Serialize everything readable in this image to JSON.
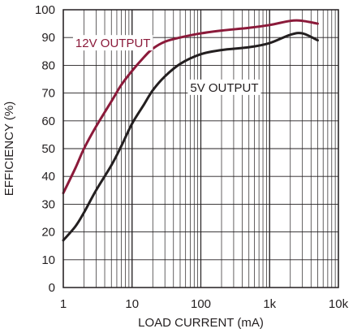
{
  "chart_data": {
    "type": "line",
    "xscale": "log",
    "xlim": [
      1,
      10000
    ],
    "ylim": [
      0,
      100
    ],
    "xlabel": "LOAD CURRENT (mA)",
    "ylabel": "EFFICIENCY (%)",
    "x_ticks": [
      {
        "value": 1,
        "label": "1"
      },
      {
        "value": 10,
        "label": "10"
      },
      {
        "value": 100,
        "label": "100"
      },
      {
        "value": 1000,
        "label": "1k"
      },
      {
        "value": 10000,
        "label": "10k"
      }
    ],
    "y_ticks": [
      0,
      10,
      20,
      30,
      40,
      50,
      60,
      70,
      80,
      90,
      100
    ],
    "grid": true,
    "series": [
      {
        "name": "12V OUTPUT",
        "color": "#8b1a3a",
        "points": [
          [
            1,
            34
          ],
          [
            1.5,
            43
          ],
          [
            2,
            50
          ],
          [
            3,
            58
          ],
          [
            5,
            67
          ],
          [
            7,
            73
          ],
          [
            10,
            78
          ],
          [
            15,
            83
          ],
          [
            20,
            86
          ],
          [
            30,
            88.5
          ],
          [
            50,
            90
          ],
          [
            100,
            91.5
          ],
          [
            200,
            92.5
          ],
          [
            500,
            93.5
          ],
          [
            1000,
            94.5
          ],
          [
            2000,
            96
          ],
          [
            3000,
            96
          ],
          [
            5000,
            95
          ]
        ]
      },
      {
        "name": "5V OUTPUT",
        "color": "#231f20",
        "points": [
          [
            1,
            17
          ],
          [
            1.5,
            22
          ],
          [
            2,
            27
          ],
          [
            3,
            35
          ],
          [
            5,
            44
          ],
          [
            7,
            51
          ],
          [
            10,
            59
          ],
          [
            15,
            66
          ],
          [
            20,
            71
          ],
          [
            30,
            76
          ],
          [
            50,
            80.5
          ],
          [
            100,
            84
          ],
          [
            200,
            85.5
          ],
          [
            500,
            86.5
          ],
          [
            1000,
            88
          ],
          [
            2000,
            91
          ],
          [
            3000,
            91.5
          ],
          [
            5000,
            89
          ]
        ]
      }
    ]
  }
}
